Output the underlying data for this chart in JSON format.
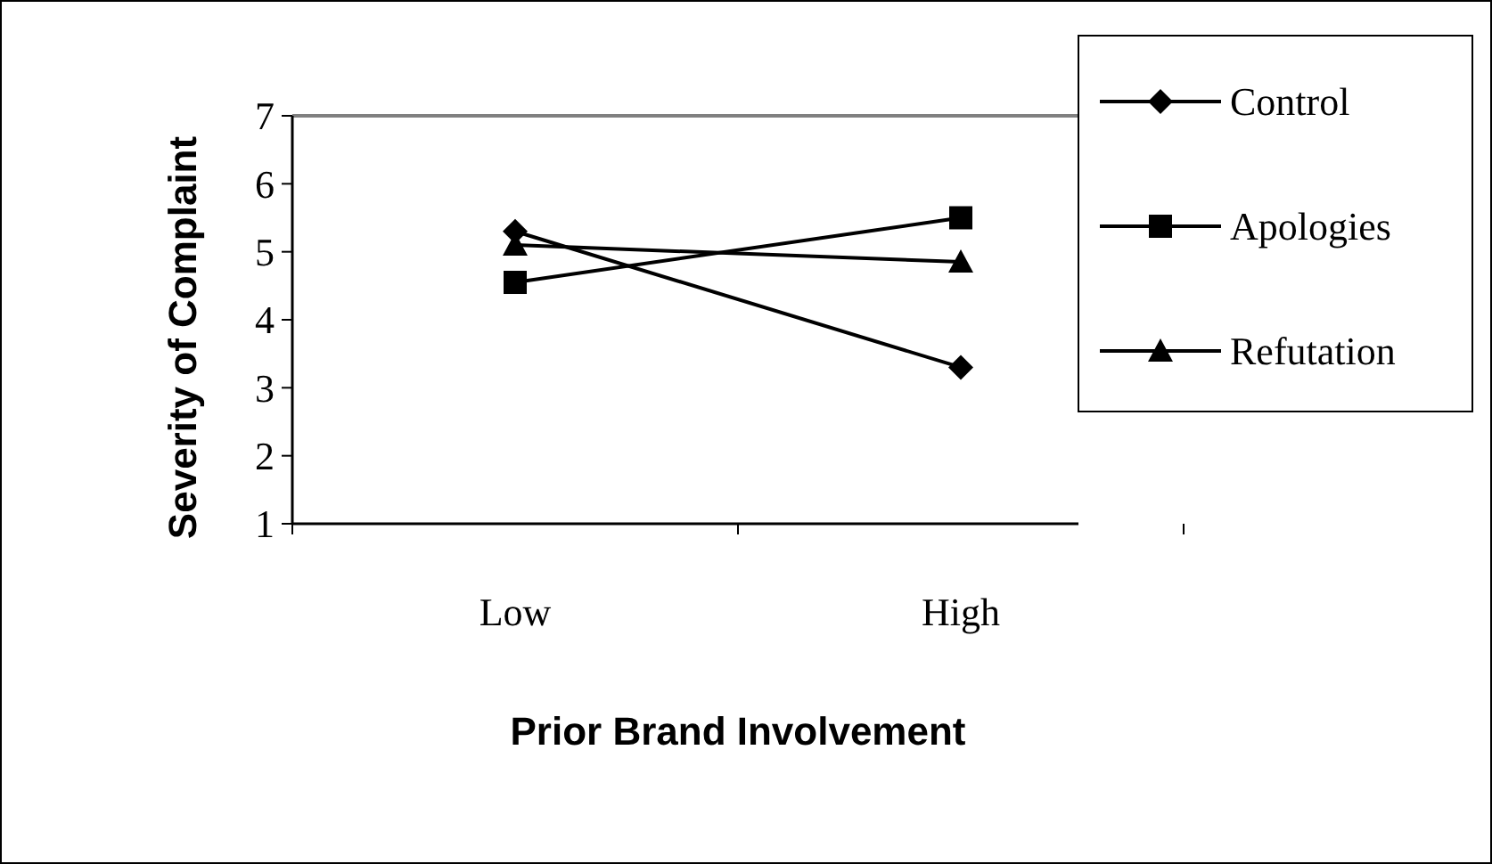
{
  "chart_data": {
    "type": "line",
    "xlabel": "Prior Brand Involvement",
    "ylabel": "Severity of Complaint",
    "categories": [
      "Low",
      "High"
    ],
    "ylim": [
      1,
      7
    ],
    "yticks": [
      1,
      2,
      3,
      4,
      5,
      6,
      7
    ],
    "grid": false,
    "legend": "right",
    "series": [
      {
        "name": "Control",
        "color": "#000000",
        "values": [
          5.3,
          3.3
        ],
        "marker": "diamond"
      },
      {
        "name": "Apologies",
        "color": "#000000",
        "values": [
          4.55,
          5.5
        ],
        "marker": "square"
      },
      {
        "name": "Refutation",
        "color": "#000000",
        "values": [
          5.1,
          4.85
        ],
        "marker": "triangle"
      }
    ]
  }
}
